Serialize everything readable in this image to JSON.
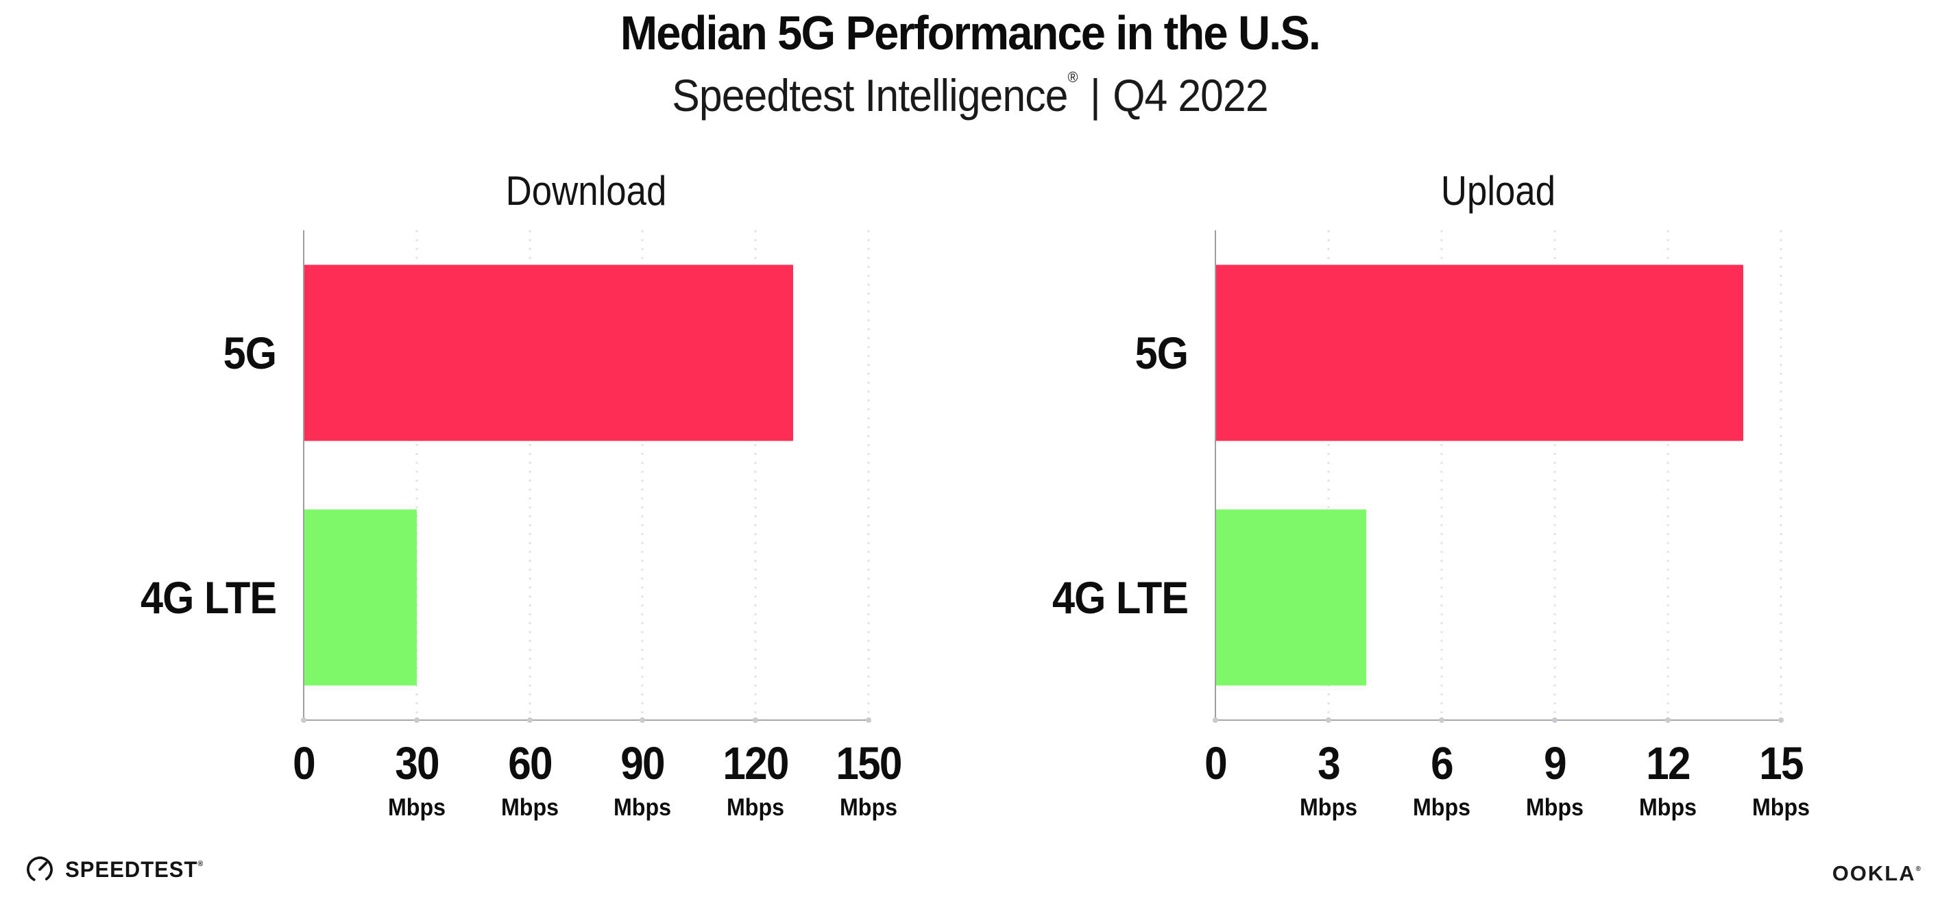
{
  "header": {
    "title": "Median 5G Performance in the U.S.",
    "subtitle_brand": "Speedtest Intelligence",
    "subtitle_trademark": "®",
    "subtitle_separator": "|",
    "subtitle_period": "Q4 2022"
  },
  "colors": {
    "bar_5g": "#FD2D55",
    "bar_4g_lte": "#7CF869",
    "axis_line": "#9E9E9E",
    "grid_dots": "#E2E2EA",
    "text": "#0D0D0D"
  },
  "chart_data": [
    {
      "type": "bar",
      "orientation": "horizontal",
      "title": "Download",
      "categories": [
        "5G",
        "4G LTE"
      ],
      "values": [
        130,
        30
      ],
      "unit": "Mbps",
      "xlim": [
        0,
        150
      ],
      "xticks": [
        0,
        30,
        60,
        90,
        120,
        150
      ],
      "series_colors": [
        "#FD2D55",
        "#7CF869"
      ],
      "grid": "dotted-vertical",
      "legend": "none"
    },
    {
      "type": "bar",
      "orientation": "horizontal",
      "title": "Upload",
      "categories": [
        "5G",
        "4G LTE"
      ],
      "values": [
        14,
        4
      ],
      "unit": "Mbps",
      "xlim": [
        0,
        15
      ],
      "xticks": [
        0,
        3,
        6,
        9,
        12,
        15
      ],
      "series_colors": [
        "#FD2D55",
        "#7CF869"
      ],
      "grid": "dotted-vertical",
      "legend": "none"
    }
  ],
  "footer": {
    "speedtest_label": "SPEEDTEST",
    "speedtest_trademark": "®",
    "ookla_label": "OOKLA",
    "ookla_trademark": "®"
  }
}
